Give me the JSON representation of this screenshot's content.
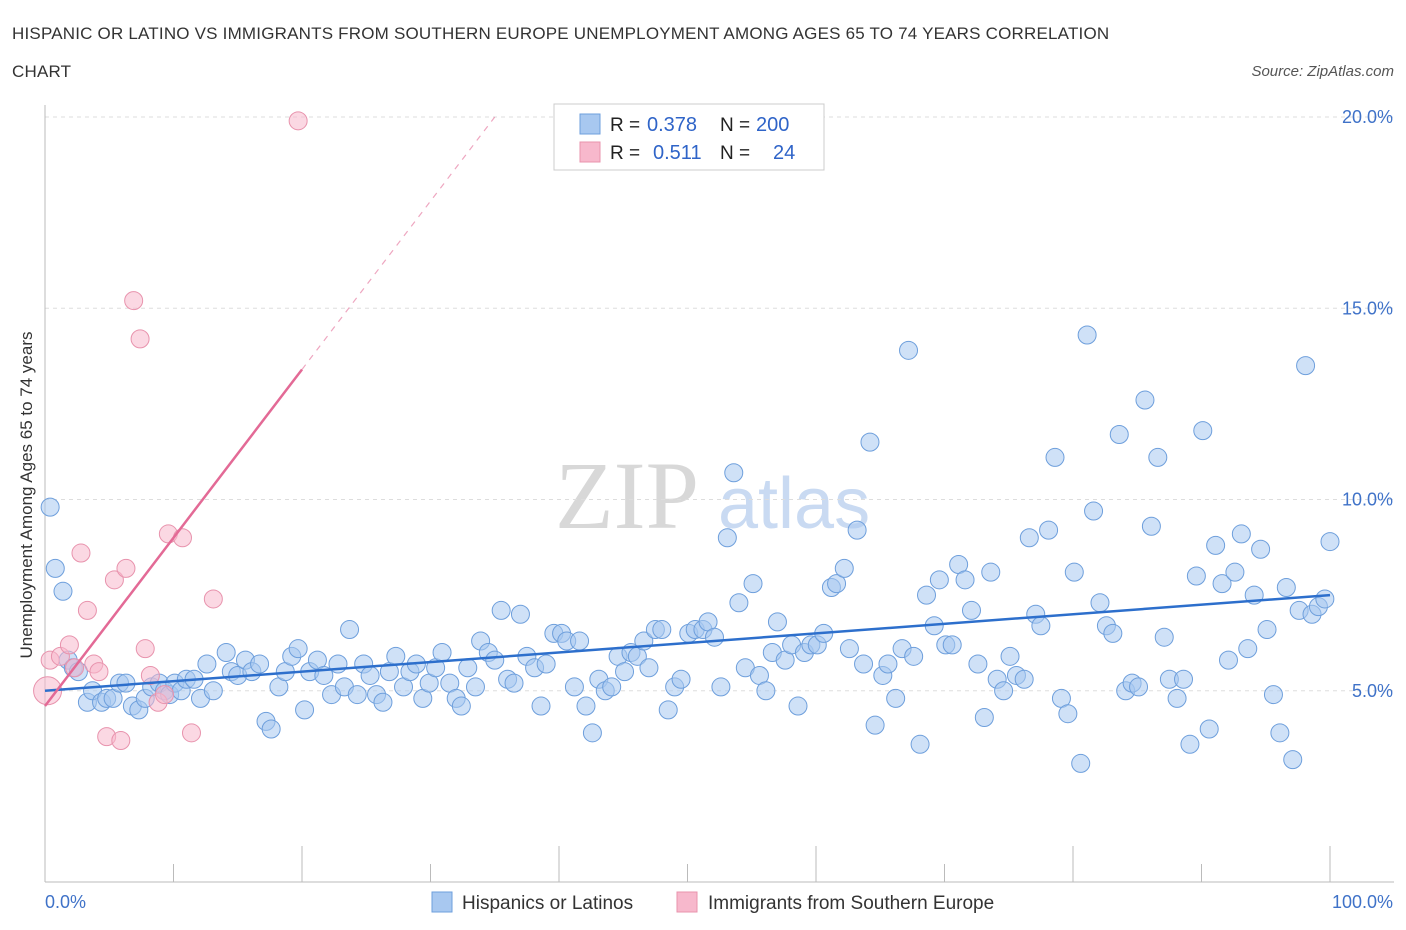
{
  "chart_data": {
    "type": "scatter",
    "title": "HISPANIC OR LATINO VS IMMIGRANTS FROM SOUTHERN EUROPE UNEMPLOYMENT AMONG AGES 65 TO 74 YEARS CORRELATION CHART",
    "title_lines": [
      "HISPANIC OR LATINO VS IMMIGRANTS FROM SOUTHERN EUROPE UNEMPLOYMENT AMONG AGES 65 TO 74 YEARS CORRELATION",
      "CHART"
    ],
    "source": "Source: ZipAtlas.com",
    "watermark": {
      "zip": "ZIP",
      "atlas": "atlas"
    },
    "ylabel": "Unemployment Among Ages 65 to 74 years",
    "xlabel": "",
    "xlim": [
      0,
      100
    ],
    "ylim": [
      0,
      20
    ],
    "x_ticks": [
      0,
      10,
      20,
      30,
      40,
      50,
      60,
      70,
      80,
      90,
      100
    ],
    "x_tick_labels": [
      {
        "value": 0,
        "label": "0.0%"
      },
      {
        "value": 100,
        "label": "100.0%"
      }
    ],
    "y_ticks": [
      {
        "value": 5,
        "label": "5.0%"
      },
      {
        "value": 10,
        "label": "10.0%"
      },
      {
        "value": 15,
        "label": "15.0%"
      },
      {
        "value": 20,
        "label": "20.0%"
      }
    ],
    "grid": true,
    "legend_position": "bottom-center",
    "stats_box": {
      "position": "top-center",
      "rows": [
        {
          "r_label": "R =",
          "r_value": "0.378",
          "n_label": "N =",
          "n_value": "200",
          "color": "#a8c8f0"
        },
        {
          "r_label": "R =",
          "r_value": "0.511",
          "n_label": "N =",
          "n_value": "24",
          "color": "#f7b8cc"
        }
      ]
    },
    "series": [
      {
        "name": "Hispanics or Latinos",
        "color": "#a8c8f0",
        "stroke": "#6e9fdc",
        "trend_color": "#2d6fcc",
        "trend": {
          "x": [
            0,
            100
          ],
          "y": [
            5.0,
            7.5
          ]
        },
        "points": [
          [
            0.4,
            9.8
          ],
          [
            0.8,
            8.2
          ],
          [
            1.4,
            7.6
          ],
          [
            1.8,
            5.8
          ],
          [
            2.2,
            5.6
          ],
          [
            2.6,
            5.5
          ],
          [
            3.3,
            4.7
          ],
          [
            3.7,
            5.0
          ],
          [
            4.4,
            4.7
          ],
          [
            4.8,
            4.8
          ],
          [
            5.3,
            4.8
          ],
          [
            5.8,
            5.2
          ],
          [
            6.3,
            5.2
          ],
          [
            6.8,
            4.6
          ],
          [
            7.3,
            4.5
          ],
          [
            7.8,
            4.8
          ],
          [
            8.3,
            5.1
          ],
          [
            8.9,
            5.2
          ],
          [
            9.3,
            5.0
          ],
          [
            9.7,
            4.9
          ],
          [
            10.1,
            5.2
          ],
          [
            10.6,
            5.0
          ],
          [
            11.0,
            5.3
          ],
          [
            11.6,
            5.3
          ],
          [
            12.1,
            4.8
          ],
          [
            12.6,
            5.7
          ],
          [
            13.1,
            5.0
          ],
          [
            14.1,
            6.0
          ],
          [
            14.5,
            5.5
          ],
          [
            15.0,
            5.4
          ],
          [
            15.6,
            5.8
          ],
          [
            16.1,
            5.5
          ],
          [
            16.7,
            5.7
          ],
          [
            17.2,
            4.2
          ],
          [
            17.6,
            4.0
          ],
          [
            18.2,
            5.1
          ],
          [
            18.7,
            5.5
          ],
          [
            19.2,
            5.9
          ],
          [
            19.7,
            6.1
          ],
          [
            20.2,
            4.5
          ],
          [
            20.6,
            5.5
          ],
          [
            21.2,
            5.8
          ],
          [
            21.7,
            5.4
          ],
          [
            22.3,
            4.9
          ],
          [
            22.8,
            5.7
          ],
          [
            23.3,
            5.1
          ],
          [
            23.7,
            6.6
          ],
          [
            24.3,
            4.9
          ],
          [
            24.8,
            5.7
          ],
          [
            25.3,
            5.4
          ],
          [
            25.8,
            4.9
          ],
          [
            26.3,
            4.7
          ],
          [
            26.8,
            5.5
          ],
          [
            27.3,
            5.9
          ],
          [
            27.9,
            5.1
          ],
          [
            28.4,
            5.5
          ],
          [
            28.9,
            5.7
          ],
          [
            29.4,
            4.8
          ],
          [
            29.9,
            5.2
          ],
          [
            30.4,
            5.6
          ],
          [
            30.9,
            6.0
          ],
          [
            31.5,
            5.2
          ],
          [
            32.0,
            4.8
          ],
          [
            32.4,
            4.6
          ],
          [
            32.9,
            5.6
          ],
          [
            33.5,
            5.1
          ],
          [
            33.9,
            6.3
          ],
          [
            34.5,
            6.0
          ],
          [
            35.0,
            5.8
          ],
          [
            35.5,
            7.1
          ],
          [
            36.0,
            5.3
          ],
          [
            36.5,
            5.2
          ],
          [
            37.0,
            7.0
          ],
          [
            37.5,
            5.9
          ],
          [
            38.1,
            5.6
          ],
          [
            38.6,
            4.6
          ],
          [
            39.0,
            5.7
          ],
          [
            39.6,
            6.5
          ],
          [
            40.2,
            6.5
          ],
          [
            40.6,
            6.3
          ],
          [
            41.2,
            5.1
          ],
          [
            41.6,
            6.3
          ],
          [
            42.1,
            4.6
          ],
          [
            42.6,
            3.9
          ],
          [
            43.1,
            5.3
          ],
          [
            43.6,
            5.0
          ],
          [
            44.1,
            5.1
          ],
          [
            44.6,
            5.9
          ],
          [
            45.1,
            5.5
          ],
          [
            45.6,
            6.0
          ],
          [
            46.1,
            5.9
          ],
          [
            46.6,
            6.3
          ],
          [
            47.0,
            5.6
          ],
          [
            47.5,
            6.6
          ],
          [
            48.0,
            6.6
          ],
          [
            48.5,
            4.5
          ],
          [
            49.0,
            5.1
          ],
          [
            49.5,
            5.3
          ],
          [
            50.1,
            6.5
          ],
          [
            50.6,
            6.6
          ],
          [
            51.2,
            6.6
          ],
          [
            51.6,
            6.8
          ],
          [
            52.1,
            6.4
          ],
          [
            52.6,
            5.1
          ],
          [
            53.1,
            9.0
          ],
          [
            53.6,
            10.7
          ],
          [
            54.0,
            7.3
          ],
          [
            54.5,
            5.6
          ],
          [
            55.1,
            7.8
          ],
          [
            55.6,
            5.4
          ],
          [
            56.1,
            5.0
          ],
          [
            56.6,
            6.0
          ],
          [
            57.0,
            6.8
          ],
          [
            57.6,
            5.8
          ],
          [
            58.1,
            6.2
          ],
          [
            58.6,
            4.6
          ],
          [
            59.1,
            6.0
          ],
          [
            59.6,
            6.2
          ],
          [
            60.1,
            6.2
          ],
          [
            60.6,
            6.5
          ],
          [
            61.2,
            7.7
          ],
          [
            61.6,
            7.8
          ],
          [
            62.2,
            8.2
          ],
          [
            62.6,
            6.1
          ],
          [
            63.2,
            9.2
          ],
          [
            63.7,
            5.7
          ],
          [
            64.2,
            11.5
          ],
          [
            64.6,
            4.1
          ],
          [
            65.2,
            5.4
          ],
          [
            65.6,
            5.7
          ],
          [
            66.2,
            4.8
          ],
          [
            66.7,
            6.1
          ],
          [
            67.2,
            13.9
          ],
          [
            67.6,
            5.9
          ],
          [
            68.1,
            3.6
          ],
          [
            68.6,
            7.5
          ],
          [
            69.2,
            6.7
          ],
          [
            69.6,
            7.9
          ],
          [
            70.1,
            6.2
          ],
          [
            70.6,
            6.2
          ],
          [
            71.1,
            8.3
          ],
          [
            71.6,
            7.9
          ],
          [
            72.1,
            7.1
          ],
          [
            72.6,
            5.7
          ],
          [
            73.1,
            4.3
          ],
          [
            73.6,
            8.1
          ],
          [
            74.1,
            5.3
          ],
          [
            74.6,
            5.0
          ],
          [
            75.1,
            5.9
          ],
          [
            75.6,
            5.4
          ],
          [
            76.2,
            5.3
          ],
          [
            76.6,
            9.0
          ],
          [
            77.1,
            7.0
          ],
          [
            77.5,
            6.7
          ],
          [
            78.1,
            9.2
          ],
          [
            78.6,
            11.1
          ],
          [
            79.1,
            4.8
          ],
          [
            79.6,
            4.4
          ],
          [
            80.1,
            8.1
          ],
          [
            80.6,
            3.1
          ],
          [
            81.1,
            14.3
          ],
          [
            81.6,
            9.7
          ],
          [
            82.1,
            7.3
          ],
          [
            82.6,
            6.7
          ],
          [
            83.1,
            6.5
          ],
          [
            83.6,
            11.7
          ],
          [
            84.1,
            5.0
          ],
          [
            84.6,
            5.2
          ],
          [
            85.1,
            5.1
          ],
          [
            85.6,
            12.6
          ],
          [
            86.1,
            9.3
          ],
          [
            86.6,
            11.1
          ],
          [
            87.1,
            6.4
          ],
          [
            87.5,
            5.3
          ],
          [
            88.1,
            4.8
          ],
          [
            88.6,
            5.3
          ],
          [
            89.1,
            3.6
          ],
          [
            89.6,
            8.0
          ],
          [
            90.1,
            11.8
          ],
          [
            90.6,
            4.0
          ],
          [
            91.1,
            8.8
          ],
          [
            91.6,
            7.8
          ],
          [
            92.1,
            5.8
          ],
          [
            92.6,
            8.1
          ],
          [
            93.1,
            9.1
          ],
          [
            93.6,
            6.1
          ],
          [
            94.1,
            7.5
          ],
          [
            94.6,
            8.7
          ],
          [
            95.1,
            6.6
          ],
          [
            95.6,
            4.9
          ],
          [
            96.1,
            3.9
          ],
          [
            96.6,
            7.7
          ],
          [
            97.1,
            3.2
          ],
          [
            97.6,
            7.1
          ],
          [
            98.1,
            13.5
          ],
          [
            98.6,
            7.0
          ],
          [
            99.1,
            7.2
          ],
          [
            99.6,
            7.4
          ],
          [
            100.0,
            8.9
          ]
        ]
      },
      {
        "name": "Immigrants from Southern Europe",
        "color": "#f7b8cc",
        "stroke": "#e893ad",
        "trend_color": "#e36a96",
        "trend": {
          "x": [
            0,
            20
          ],
          "y": [
            4.6,
            13.4
          ]
        },
        "trend_extension": {
          "x": [
            20,
            35
          ],
          "y": [
            13.4,
            20.0
          ]
        },
        "points": [
          [
            0.2,
            5.0
          ],
          [
            0.4,
            5.8
          ],
          [
            1.2,
            5.9
          ],
          [
            1.9,
            6.2
          ],
          [
            2.3,
            5.6
          ],
          [
            2.8,
            8.6
          ],
          [
            3.3,
            7.1
          ],
          [
            3.8,
            5.7
          ],
          [
            4.2,
            5.5
          ],
          [
            4.8,
            3.8
          ],
          [
            5.4,
            7.9
          ],
          [
            5.9,
            3.7
          ],
          [
            6.3,
            8.2
          ],
          [
            6.9,
            15.2
          ],
          [
            7.4,
            14.2
          ],
          [
            7.8,
            6.1
          ],
          [
            8.2,
            5.4
          ],
          [
            8.8,
            4.7
          ],
          [
            9.3,
            4.9
          ],
          [
            9.6,
            9.1
          ],
          [
            10.7,
            9.0
          ],
          [
            11.4,
            3.9
          ],
          [
            13.1,
            7.4
          ],
          [
            19.7,
            19.9
          ]
        ]
      }
    ]
  }
}
